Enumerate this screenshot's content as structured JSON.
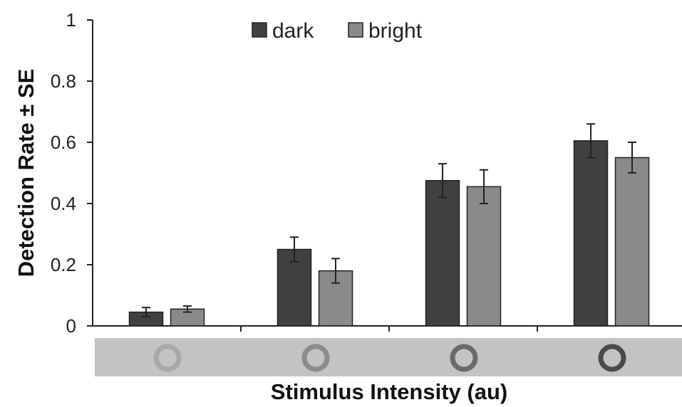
{
  "chart_data": {
    "type": "bar",
    "categories": [
      "",
      "",
      "",
      ""
    ],
    "series": [
      {
        "name": "dark",
        "color": "#404040",
        "values": [
          0.045,
          0.25,
          0.475,
          0.605
        ],
        "errors": [
          0.015,
          0.04,
          0.055,
          0.055
        ]
      },
      {
        "name": "bright",
        "color": "#8a8a8a",
        "values": [
          0.055,
          0.18,
          0.455,
          0.55
        ],
        "errors": [
          0.01,
          0.04,
          0.055,
          0.05
        ]
      }
    ],
    "xlabel": "Stimulus Intensity (au)",
    "ylabel": "Detection Rate ± SE",
    "ylim": [
      0,
      1
    ],
    "yticks": [
      0,
      0.2,
      0.4,
      0.6,
      0.8,
      1
    ],
    "ytick_labels": [
      "0",
      "0.2",
      "0.4",
      "0.6",
      "0.8",
      "1"
    ],
    "grid": false,
    "legend_position": "top",
    "stimulus_strip": {
      "background": "#c3c3c3",
      "ring_colors": [
        "#a8a8a8",
        "#8c8c8c",
        "#6a6a6a",
        "#4a4a4a"
      ]
    }
  }
}
